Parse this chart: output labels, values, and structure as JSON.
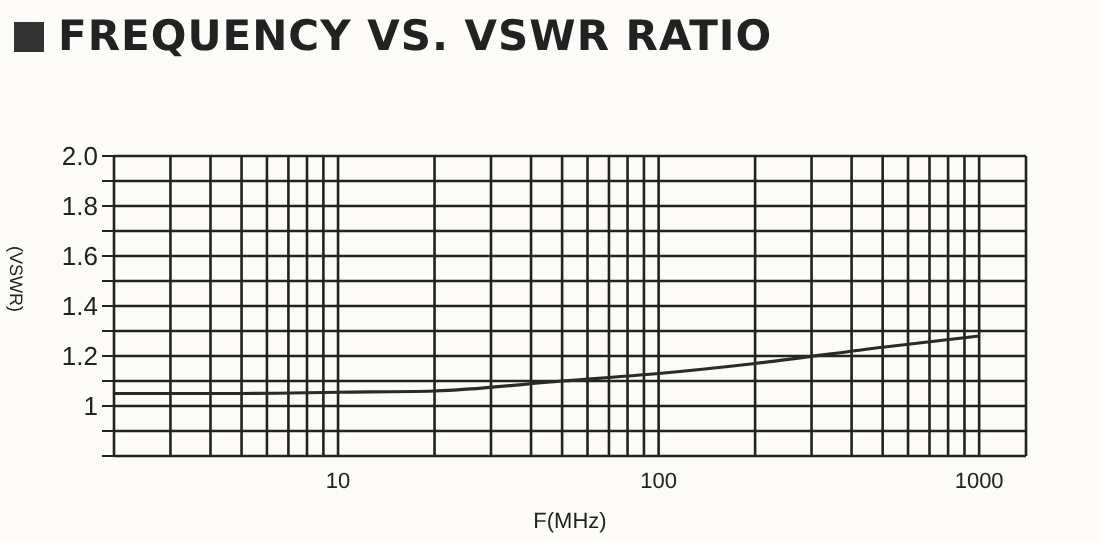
{
  "chart_data": {
    "type": "line",
    "title": "FREQUENCY VS. VSWR RATIO",
    "xlabel": "F(MHz)",
    "ylabel": "(VSWR)",
    "log": "x",
    "grid": true,
    "legend": false,
    "marker": "none",
    "line_style": "solid",
    "x": [
      2,
      5,
      10,
      20,
      50,
      100,
      200,
      500,
      1000
    ],
    "series": [
      {
        "color": "#2a2a2a",
        "values": [
          1.05,
          1.05,
          1.055,
          1.06,
          1.1,
          1.13,
          1.17,
          1.235,
          1.28
        ]
      }
    ],
    "xlim": [
      2,
      1400
    ],
    "xticks": [
      {
        "value": 2,
        "label": null
      },
      {
        "value": 3,
        "label": null
      },
      {
        "value": 4,
        "label": null
      },
      {
        "value": 5,
        "label": null
      },
      {
        "value": 6,
        "label": null
      },
      {
        "value": 7,
        "label": null
      },
      {
        "value": 8,
        "label": null
      },
      {
        "value": 9,
        "label": null
      },
      10,
      {
        "value": 20,
        "label": null
      },
      {
        "value": 30,
        "label": null
      },
      {
        "value": 40,
        "label": null
      },
      {
        "value": 50,
        "label": null
      },
      {
        "value": 60,
        "label": null
      },
      {
        "value": 70,
        "label": null
      },
      {
        "value": 80,
        "label": null
      },
      {
        "value": 90,
        "label": null
      },
      100,
      {
        "value": 200,
        "label": null
      },
      {
        "value": 300,
        "label": null
      },
      {
        "value": 400,
        "label": null
      },
      {
        "value": 500,
        "label": null
      },
      {
        "value": 600,
        "label": null
      },
      {
        "value": 700,
        "label": null
      },
      {
        "value": 800,
        "label": null
      },
      {
        "value": 900,
        "label": null
      },
      1000
    ],
    "ylim": [
      0.8,
      2.0
    ],
    "yticks": [
      {
        "value": 0.8,
        "label": null
      },
      {
        "value": 0.9,
        "label": null
      },
      {
        "value": 1,
        "label": "1"
      },
      {
        "value": 1.1,
        "label": null
      },
      1.2,
      {
        "value": 1.3,
        "label": null
      },
      1.4,
      {
        "value": 1.5,
        "label": null
      },
      1.6,
      {
        "value": 1.7,
        "label": null
      },
      1.8,
      {
        "value": 1.9,
        "label": null
      },
      {
        "value": 2,
        "label": "2.0"
      }
    ]
  }
}
